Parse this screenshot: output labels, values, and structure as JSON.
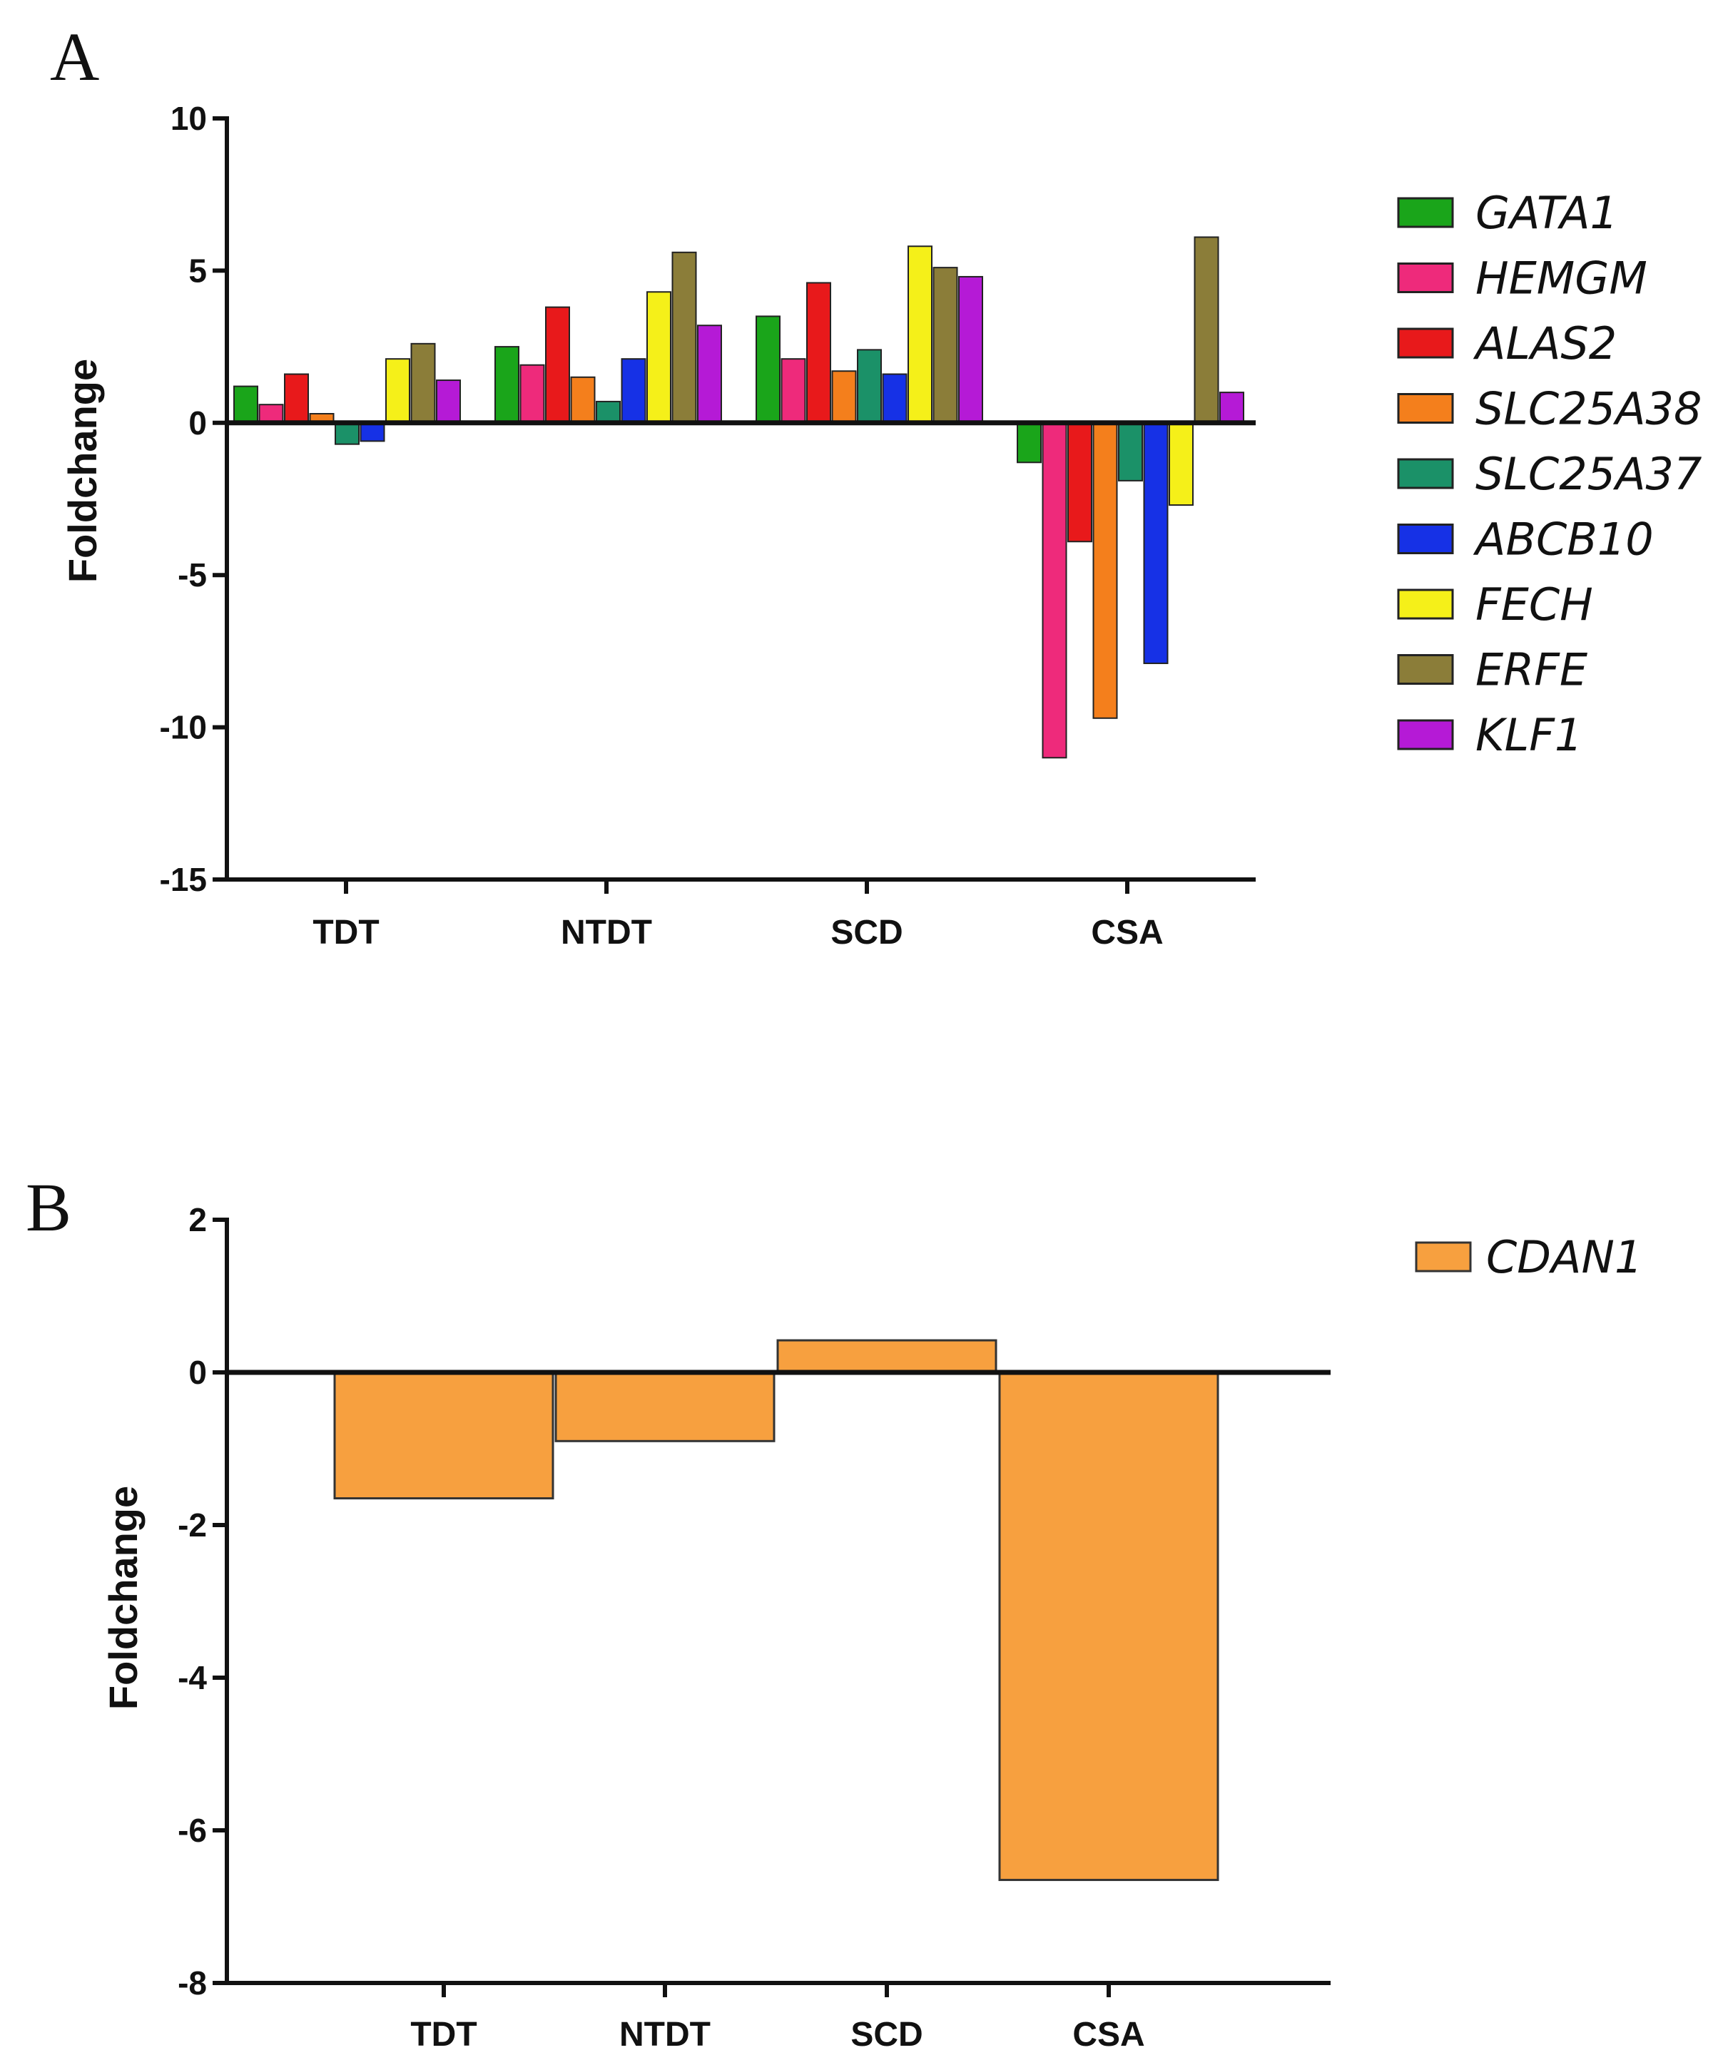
{
  "chart_data": [
    {
      "panel": "A",
      "type": "bar",
      "title": "",
      "xlabel": "",
      "ylabel": "Foldchange",
      "ylim": [
        -15,
        10
      ],
      "yticks": [
        10,
        5,
        0,
        -5,
        -10,
        -15
      ],
      "categories": [
        "TDT",
        "NTDT",
        "SCD",
        "CSA"
      ],
      "legend_position": "right",
      "series": [
        {
          "name": "GATA1",
          "color": "#1aa51a",
          "values": [
            1.2,
            2.5,
            3.5,
            -1.3
          ]
        },
        {
          "name": "HEMGM",
          "color": "#ee2a7b",
          "values": [
            0.6,
            1.9,
            2.1,
            -11.0
          ]
        },
        {
          "name": "ALAS2",
          "color": "#e8191b",
          "values": [
            1.6,
            3.8,
            4.6,
            -3.9
          ]
        },
        {
          "name": "SLC25A38",
          "color": "#f47f1c",
          "values": [
            0.3,
            1.5,
            1.7,
            -9.7
          ]
        },
        {
          "name": "SLC25A37",
          "color": "#1b9168",
          "values": [
            -0.7,
            0.7,
            2.4,
            -1.9
          ]
        },
        {
          "name": "ABCB10",
          "color": "#1631e6",
          "values": [
            -0.6,
            2.1,
            1.6,
            -7.9
          ]
        },
        {
          "name": "FECH",
          "color": "#f5f019",
          "values": [
            2.1,
            4.3,
            5.8,
            -2.7
          ]
        },
        {
          "name": "ERFE",
          "color": "#8b7d39",
          "values": [
            2.6,
            5.6,
            5.1,
            6.1
          ]
        },
        {
          "name": "KLF1",
          "color": "#b51ad6",
          "values": [
            1.4,
            3.2,
            4.8,
            1.0
          ]
        }
      ]
    },
    {
      "panel": "B",
      "type": "bar",
      "title": "",
      "xlabel": "",
      "ylabel": "Foldchange",
      "ylim": [
        -8,
        2
      ],
      "yticks": [
        2,
        0,
        -2,
        -4,
        -6,
        -8
      ],
      "categories": [
        "TDT",
        "NTDT",
        "SCD",
        "CSA"
      ],
      "legend_position": "top-right",
      "series": [
        {
          "name": "CDAN1",
          "color": "#f7a03f",
          "values": [
            -1.65,
            -0.9,
            0.42,
            -6.65
          ]
        }
      ]
    }
  ]
}
